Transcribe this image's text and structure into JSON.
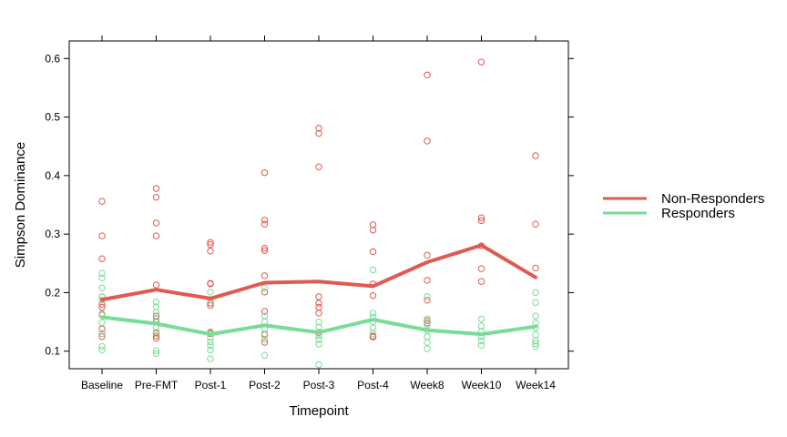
{
  "chart_data": {
    "type": "scatter",
    "xlabel": "Timepoint",
    "ylabel": "Simpson Dominance",
    "categories": [
      "Baseline",
      "Pre-FMT",
      "Post-1",
      "Post-2",
      "Post-3",
      "Post-4",
      "Week8",
      "Week10",
      "Week14"
    ],
    "yticks": [
      0.1,
      0.2,
      0.3,
      0.4,
      0.5,
      0.6
    ],
    "ylim": [
      0.07,
      0.63
    ],
    "grid": false,
    "legend_position": "right",
    "series": [
      {
        "name": "Non-Responders",
        "color": "#e05a50",
        "mean": [
          0.188,
          0.205,
          0.19,
          0.217,
          0.219,
          0.211,
          0.252,
          0.281,
          0.226
        ],
        "points": [
          [
            0.356,
            0.297,
            0.258,
            0.193,
            0.18,
            0.175,
            0.162,
            0.138,
            0.13,
            0.125
          ],
          [
            0.378,
            0.363,
            0.319,
            0.297,
            0.213,
            0.16,
            0.15,
            0.132,
            0.126,
            0.122
          ],
          [
            0.286,
            0.282,
            0.271,
            0.216,
            0.215,
            0.182,
            0.178,
            0.132,
            0.13
          ],
          [
            0.405,
            0.324,
            0.317,
            0.276,
            0.272,
            0.229,
            0.201,
            0.168,
            0.128,
            0.115
          ],
          [
            0.481,
            0.472,
            0.415,
            0.193,
            0.182,
            0.175,
            0.165,
            0.132
          ],
          [
            0.316,
            0.307,
            0.27,
            0.215,
            0.195,
            0.126,
            0.124
          ],
          [
            0.572,
            0.459,
            0.264,
            0.221,
            0.187,
            0.152,
            0.148
          ],
          [
            0.594,
            0.328,
            0.323,
            0.28,
            0.241,
            0.219
          ],
          [
            0.434,
            0.317,
            0.242
          ]
        ]
      },
      {
        "name": "Responders",
        "color": "#79dc98",
        "mean": [
          0.158,
          0.147,
          0.129,
          0.144,
          0.132,
          0.154,
          0.136,
          0.129,
          0.142
        ],
        "points": [
          [
            0.233,
            0.225,
            0.208,
            0.193,
            0.187,
            0.164,
            0.149,
            0.13,
            0.108,
            0.102
          ],
          [
            0.184,
            0.176,
            0.166,
            0.155,
            0.14,
            0.13,
            0.101,
            0.096
          ],
          [
            0.201,
            0.188,
            0.133,
            0.123,
            0.116,
            0.11,
            0.102,
            0.087
          ],
          [
            0.208,
            0.16,
            0.15,
            0.138,
            0.13,
            0.12,
            0.093
          ],
          [
            0.15,
            0.141,
            0.127,
            0.12,
            0.112,
            0.077
          ],
          [
            0.239,
            0.165,
            0.158,
            0.15,
            0.14,
            0.13
          ],
          [
            0.193,
            0.155,
            0.145,
            0.135,
            0.125,
            0.115,
            0.104
          ],
          [
            0.155,
            0.143,
            0.134,
            0.125,
            0.118,
            0.11
          ],
          [
            0.2,
            0.183,
            0.16,
            0.148,
            0.14,
            0.128,
            0.118,
            0.113,
            0.108
          ]
        ]
      }
    ]
  }
}
